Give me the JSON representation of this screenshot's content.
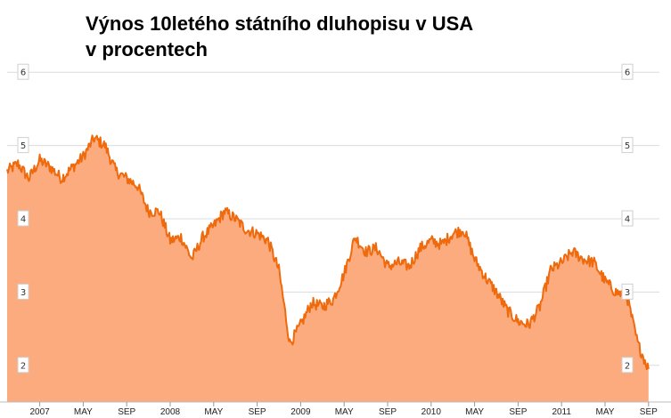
{
  "chart_data": {
    "type": "area",
    "title": "Výnos 10letého státního dluhopisu v USA\nv procentech",
    "xlabel": "",
    "ylabel": "",
    "ylim": [
      1.5,
      6.5
    ],
    "y_ticks": [
      "2",
      "3",
      "4",
      "5",
      "6"
    ],
    "x_ticks": [
      "2007",
      "MAY",
      "SEP",
      "2008",
      "MAY",
      "SEP",
      "2009",
      "MAY",
      "SEP",
      "2010",
      "MAY",
      "SEP",
      "2011",
      "MAY",
      "SEP"
    ],
    "x_range": [
      "2006-10",
      "2011-10"
    ],
    "grid": true,
    "legend": "none",
    "colors": {
      "line": "#ee6a0c",
      "fill": "#fbab7e",
      "grid": "#dcdcdc"
    },
    "series": [
      {
        "x": [
          "2006-10",
          "2006-11",
          "2006-12",
          "2007-01",
          "2007-02",
          "2007-03",
          "2007-04",
          "2007-05",
          "2007-06",
          "2007-07",
          "2007-08",
          "2007-09",
          "2007-10",
          "2007-11",
          "2007-12",
          "2008-01",
          "2008-02",
          "2008-03",
          "2008-04",
          "2008-05",
          "2008-06",
          "2008-07",
          "2008-08",
          "2008-09",
          "2008-10",
          "2008-11",
          "2008-12",
          "2009-01",
          "2009-02",
          "2009-03",
          "2009-04",
          "2009-05",
          "2009-06",
          "2009-07",
          "2009-08",
          "2009-09",
          "2009-10",
          "2009-11",
          "2009-12",
          "2010-01",
          "2010-02",
          "2010-03",
          "2010-04",
          "2010-05",
          "2010-06",
          "2010-07",
          "2010-08",
          "2010-09",
          "2010-10",
          "2010-11",
          "2010-12",
          "2011-01",
          "2011-02",
          "2011-03",
          "2011-04",
          "2011-05",
          "2011-06",
          "2011-07",
          "2011-08",
          "2011-09"
        ],
        "values": [
          4.65,
          4.75,
          4.55,
          4.8,
          4.7,
          4.55,
          4.7,
          4.85,
          5.1,
          5.0,
          4.65,
          4.55,
          4.45,
          4.1,
          4.1,
          3.7,
          3.75,
          3.45,
          3.75,
          3.9,
          4.1,
          4.0,
          3.85,
          3.8,
          3.7,
          3.3,
          2.3,
          2.55,
          2.85,
          2.8,
          2.9,
          3.25,
          3.75,
          3.55,
          3.6,
          3.35,
          3.4,
          3.35,
          3.6,
          3.7,
          3.65,
          3.8,
          3.85,
          3.45,
          3.2,
          3.0,
          2.75,
          2.6,
          2.55,
          2.8,
          3.3,
          3.4,
          3.55,
          3.45,
          3.4,
          3.15,
          3.0,
          2.95,
          2.3,
          1.95
        ]
      }
    ]
  }
}
